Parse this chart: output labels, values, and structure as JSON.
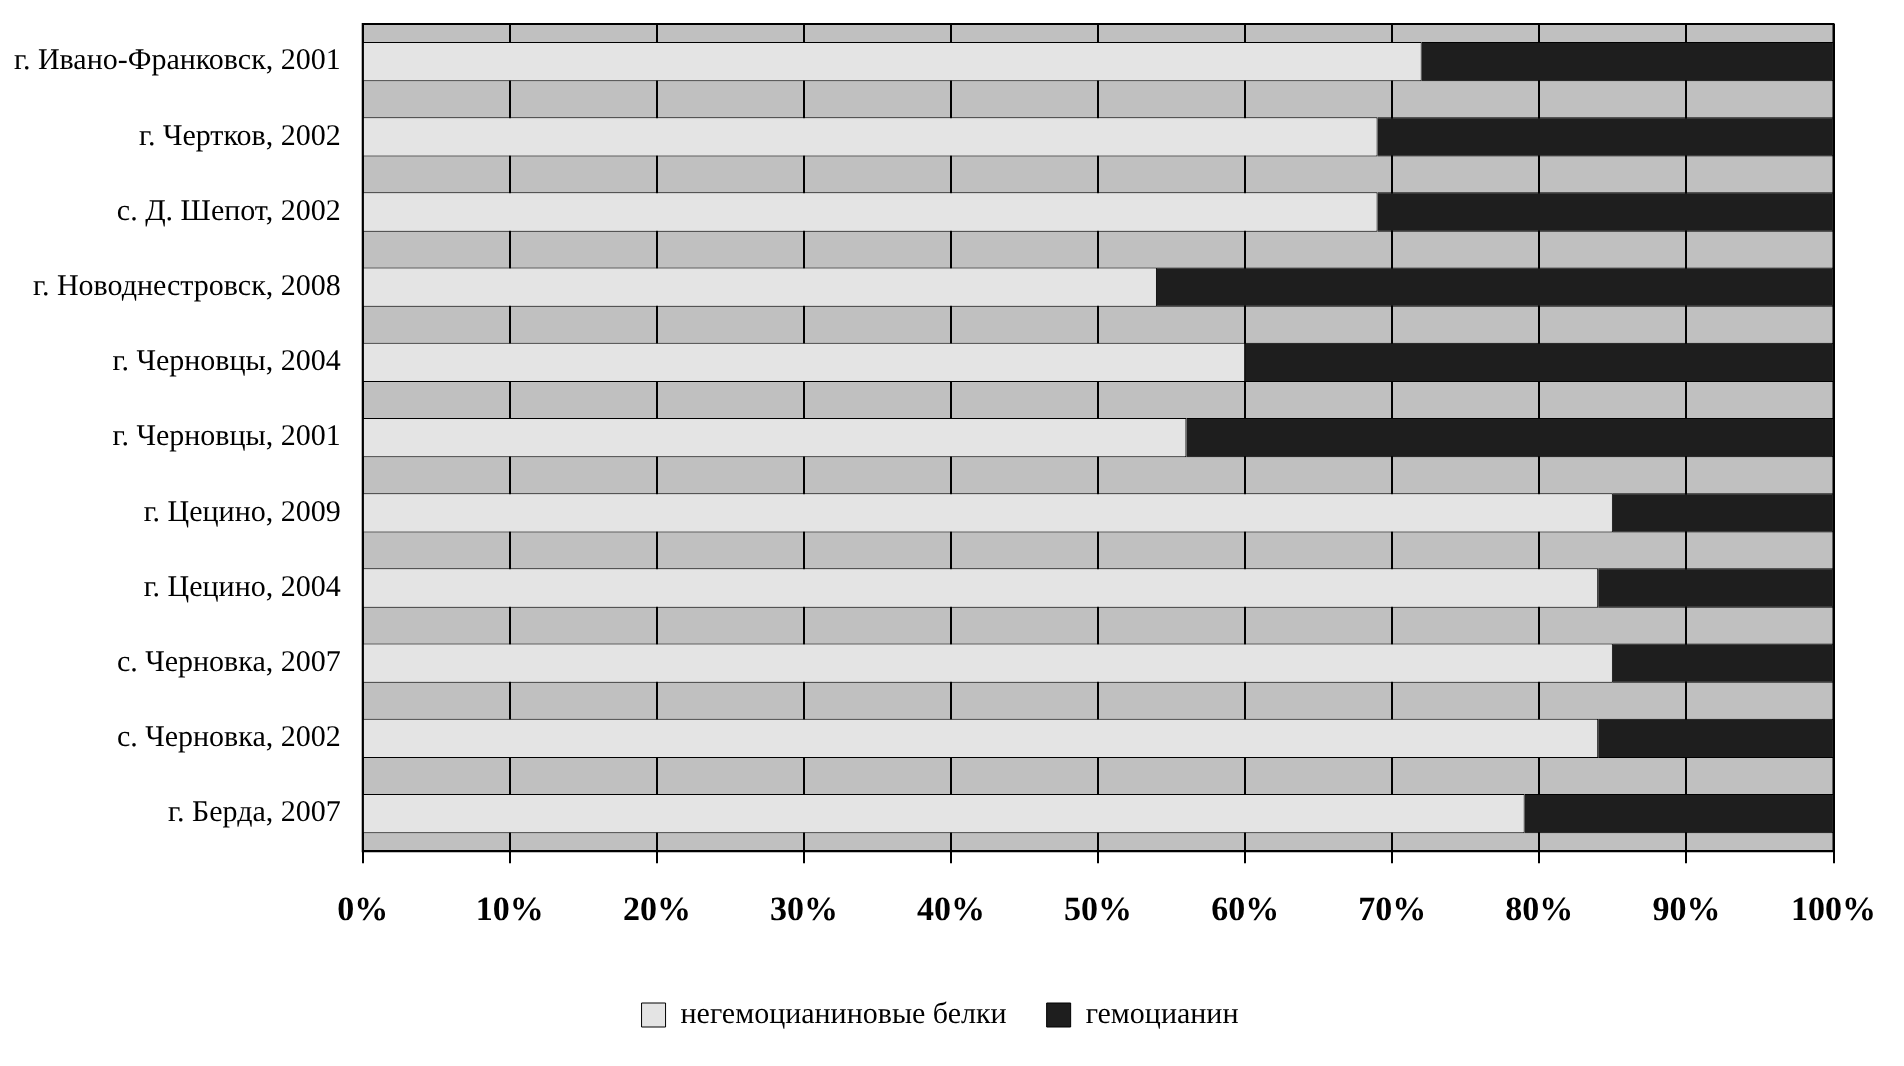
{
  "chart_data": {
    "type": "bar",
    "orientation": "horizontal",
    "stacked": true,
    "categories": [
      "г. Ивано-Франковск, 2001",
      "г. Чертков, 2002",
      "с. Д. Шепот, 2002",
      "г. Новоднестровск, 2008",
      "г. Черновцы, 2004",
      "г. Черновцы, 2001",
      "г. Цецино, 2009",
      "г. Цецино, 2004",
      "с. Черновка, 2007",
      "с. Черновка, 2002",
      "г. Берда, 2007"
    ],
    "series": [
      {
        "name": "негемоцианиновые белки",
        "color": "#e4e4e4",
        "values": [
          72,
          69,
          69,
          54,
          60,
          56,
          85,
          84,
          85,
          84,
          79
        ]
      },
      {
        "name": "гемоцианин",
        "color": "#1e1e1e",
        "values": [
          28,
          31,
          31,
          46,
          40,
          44,
          15,
          16,
          15,
          16,
          21
        ]
      }
    ],
    "xlim": [
      0,
      100
    ],
    "xticks": [
      {
        "value": 0,
        "label": "0%"
      },
      {
        "value": 10,
        "label": "10%"
      },
      {
        "value": 20,
        "label": "20%"
      },
      {
        "value": 30,
        "label": "30%"
      },
      {
        "value": 40,
        "label": "40%"
      },
      {
        "value": 50,
        "label": "50%"
      },
      {
        "value": 60,
        "label": "60%"
      },
      {
        "value": 70,
        "label": "70%"
      },
      {
        "value": 80,
        "label": "80%"
      },
      {
        "value": 90,
        "label": "90%"
      },
      {
        "value": 100,
        "label": "100%"
      }
    ],
    "grid": "x",
    "legend": "bottom"
  }
}
